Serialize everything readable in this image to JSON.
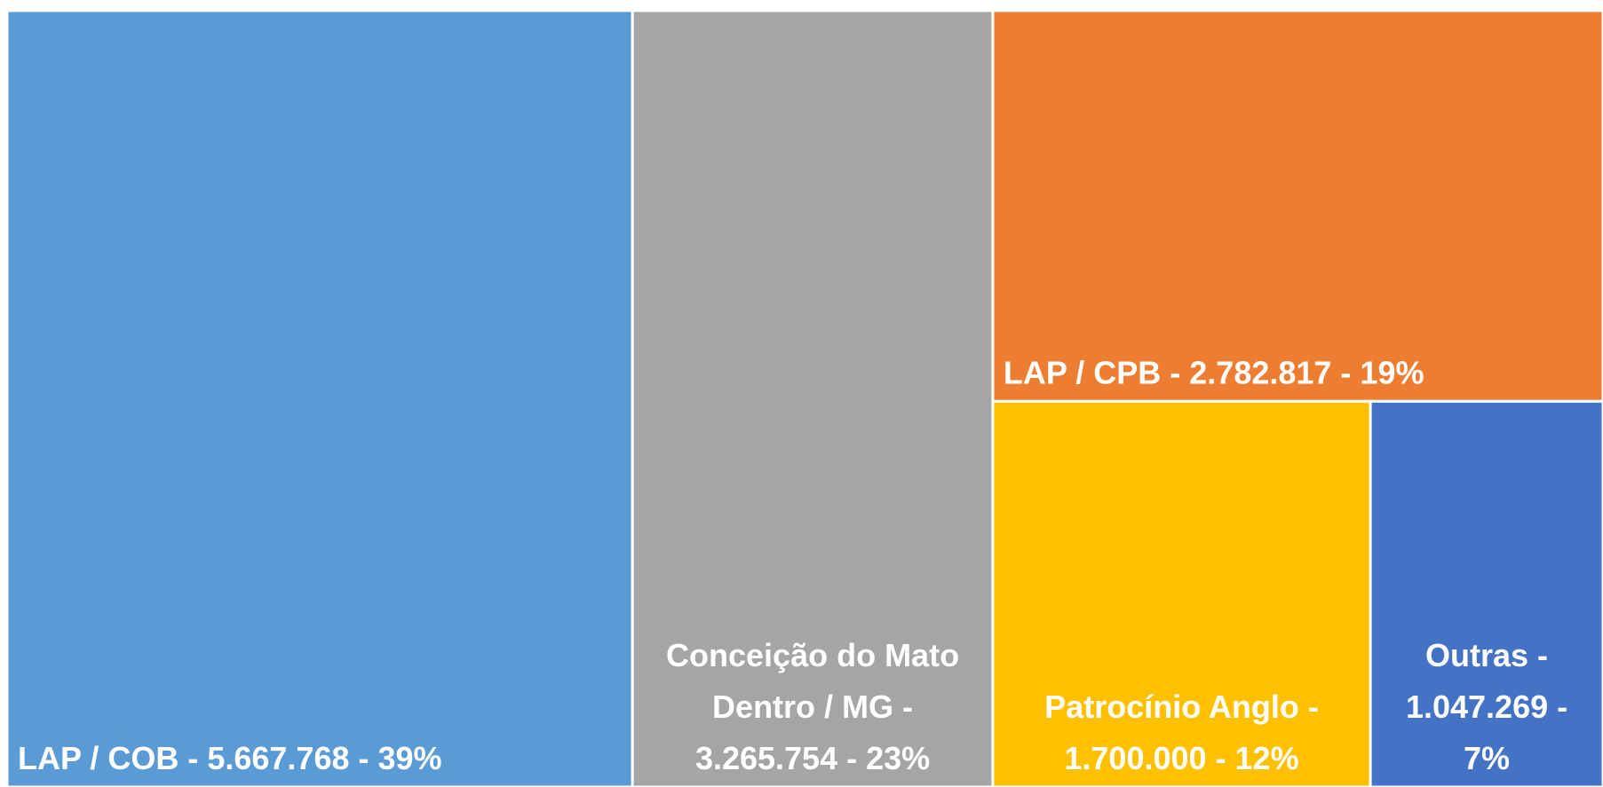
{
  "chart_data": {
    "type": "treemap",
    "categories": [
      "LAP / COB",
      "Conceição do Mato Dentro / MG",
      "LAP / CPB",
      "Patrocínio Anglo",
      "Outras"
    ],
    "values": [
      5667768,
      3265754,
      2782817,
      1700000,
      1047269
    ],
    "value_labels": [
      "LAP / COB - 5.667.768 - 39%",
      "Conceição do Mato Dentro / MG - 3.265.754 - 23%",
      "LAP / CPB - 2.782.817 - 19%",
      "Patrocínio Anglo - 1.700.000 - 12%",
      "Outras - 1.047.269 - 7%"
    ],
    "colors": [
      "#5b9bd5",
      "#a5a5a5",
      "#ed7d31",
      "#ffc000",
      "#4472c4"
    ]
  }
}
